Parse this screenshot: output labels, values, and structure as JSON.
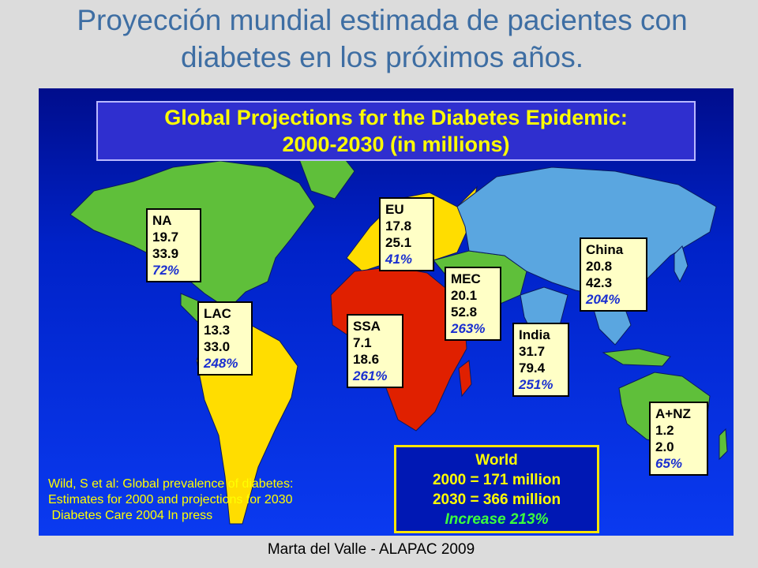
{
  "slide": {
    "title_line1": "Proyección mundial estimada de pacientes con",
    "title_line2": "diabetes en los próximos años.",
    "footer": "Marta del Valle - ALAPAC 2009"
  },
  "map": {
    "heading_line1": "Global  Projections for the Diabetes Epidemic:",
    "heading_line2": "2000-2030 (in millions)",
    "colors": {
      "ocean": "#0a30e0",
      "green": "#5fbf3a",
      "yellow": "#ffdd00",
      "red": "#e02000",
      "lightblue": "#5aa6e0"
    },
    "regions": [
      {
        "code": "NA",
        "y2000": "19.7",
        "y2030": "33.9",
        "increase": "72%",
        "color": "green"
      },
      {
        "code": "LAC",
        "y2000": "13.3",
        "y2030": "33.0",
        "increase": "248%",
        "color": "yellow"
      },
      {
        "code": "EU",
        "y2000": "17.8",
        "y2030": "25.1",
        "increase": "41%",
        "color": "yellow"
      },
      {
        "code": "SSA",
        "y2000": "7.1",
        "y2030": "18.6",
        "increase": "261%",
        "color": "red"
      },
      {
        "code": "MEC",
        "y2000": "20.1",
        "y2030": "52.8",
        "increase": "263%",
        "color": "green"
      },
      {
        "code": "India",
        "y2000": "31.7",
        "y2030": "79.4",
        "increase": "251%",
        "color": "lightblue"
      },
      {
        "code": "China",
        "y2000": "20.8",
        "y2030": "42.3",
        "increase": "204%",
        "color": "lightblue"
      },
      {
        "code": "A+NZ",
        "y2000": "1.2",
        "y2030": "2.0",
        "increase": "65%",
        "color": "green"
      }
    ],
    "world": {
      "title": "World",
      "line_2000": "2000 = 171 million",
      "line_2030": "2030 = 366 million",
      "increase": "Increase 213%"
    },
    "citation": [
      "Wild, S et al: Global prevalence of diabetes:",
      "Estimates for 2000 and projections for 2030",
      " Diabetes Care 2004 In press"
    ]
  }
}
